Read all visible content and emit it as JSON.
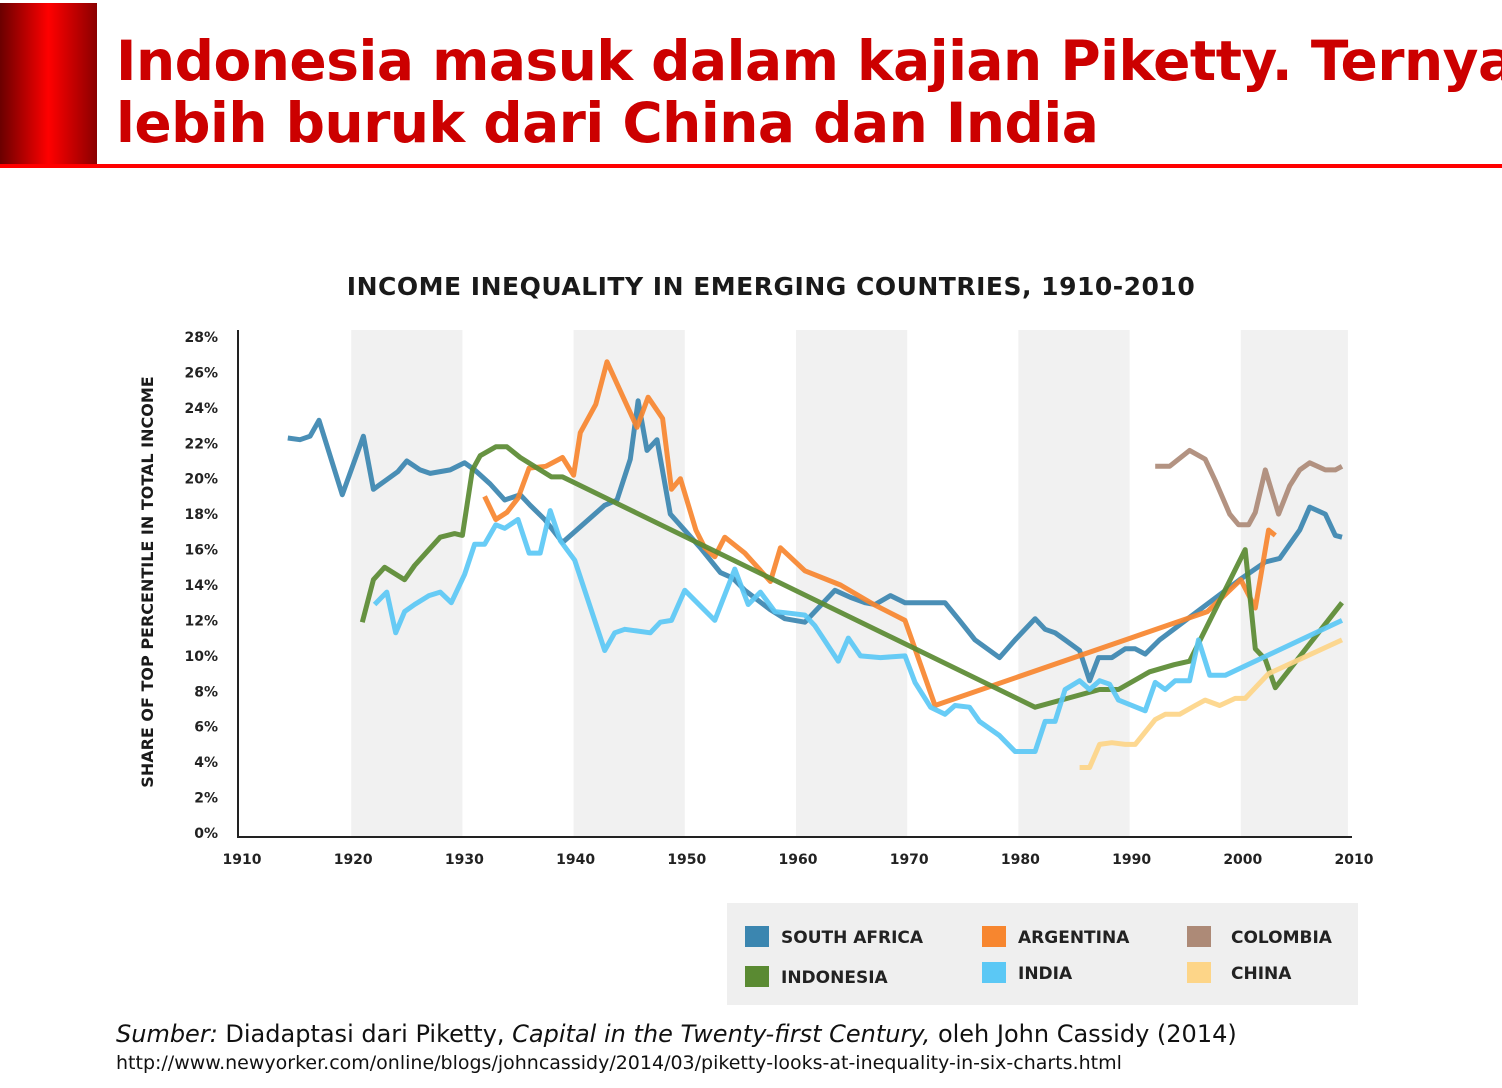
{
  "slide": {
    "title_line1": "Indonesia masuk dalam kajian Piketty. Ternyata",
    "title_line2": "lebih buruk dari China dan India",
    "accent_color": "#cc0000"
  },
  "source": {
    "label": "Sumber:",
    "text1": " Diadaptasi dari Piketty, ",
    "book": "Capital in the Twenty-first Century,",
    "text2": " oleh John Cassidy (2014)",
    "url": "http://www.newyorker.com/online/blogs/johncassidy/2014/03/piketty-looks-at-inequality-in-six-charts.html"
  },
  "chart_data": {
    "type": "line",
    "title": "INCOME INEQUALITY IN EMERGING COUNTRIES, 1910-2010",
    "xlabel": "",
    "ylabel": "SHARE OF TOP PERCENTILE IN TOTAL INCOME",
    "xlim": [
      1910,
      2010
    ],
    "ylim": [
      0,
      28
    ],
    "x_ticks": [
      "1910",
      "1920",
      "1930",
      "1940",
      "1950",
      "1960",
      "1970",
      "1980",
      "1990",
      "2000",
      "2010"
    ],
    "y_ticks": [
      "0%",
      "2%",
      "4%",
      "6%",
      "8%",
      "10%",
      "12%",
      "14%",
      "16%",
      "18%",
      "20%",
      "22%",
      "24%",
      "26%",
      "28%"
    ],
    "shaded_decades": [
      [
        1920,
        1930
      ],
      [
        1940,
        1950
      ],
      [
        1960,
        1970
      ],
      [
        1980,
        1990
      ],
      [
        2000,
        2009
      ]
    ],
    "legend_placement": "bottom-right",
    "series": [
      {
        "name": "SOUTH AFRICA",
        "color": "#3b86b0",
        "points": [
          [
            1914.3,
            22.3
          ],
          [
            1915.4,
            22.2
          ],
          [
            1916.3,
            22.4
          ],
          [
            1917.1,
            23.3
          ],
          [
            1919.2,
            19.1
          ],
          [
            1921.1,
            22.4
          ],
          [
            1922,
            19.4
          ],
          [
            1924.2,
            20.4
          ],
          [
            1925,
            21
          ],
          [
            1926.2,
            20.5
          ],
          [
            1927.1,
            20.3
          ],
          [
            1928.9,
            20.5
          ],
          [
            1930.2,
            20.9
          ],
          [
            1931.1,
            20.5
          ],
          [
            1932.5,
            19.7
          ],
          [
            1933.8,
            18.8
          ],
          [
            1935.2,
            19.1
          ],
          [
            1936.1,
            18.5
          ],
          [
            1937.4,
            17.7
          ],
          [
            1939,
            16.4
          ],
          [
            1942.8,
            18.5
          ],
          [
            1943.9,
            18.8
          ],
          [
            1945.1,
            21.1
          ],
          [
            1945.8,
            24.4
          ],
          [
            1946.6,
            21.6
          ],
          [
            1947.5,
            22.2
          ],
          [
            1948.7,
            18
          ],
          [
            1951.4,
            16.1
          ],
          [
            1953.2,
            14.7
          ],
          [
            1954.3,
            14.4
          ],
          [
            1955.4,
            13.7
          ],
          [
            1957.7,
            12.6
          ],
          [
            1959,
            12.1
          ],
          [
            1960.8,
            11.9
          ],
          [
            1963.5,
            13.7
          ],
          [
            1964.9,
            13.3
          ],
          [
            1966.2,
            13
          ],
          [
            1967.1,
            12.9
          ],
          [
            1968.5,
            13.4
          ],
          [
            1969.8,
            13
          ],
          [
            1973.4,
            13
          ],
          [
            1974.7,
            12
          ],
          [
            1976.1,
            10.9
          ],
          [
            1978.3,
            9.9
          ],
          [
            1979.7,
            10.9
          ],
          [
            1981.5,
            12.1
          ],
          [
            1982.4,
            11.5
          ],
          [
            1983.3,
            11.3
          ],
          [
            1984.2,
            10.9
          ],
          [
            1985.5,
            10.3
          ],
          [
            1986.4,
            8.6
          ],
          [
            1987.2,
            9.9
          ],
          [
            1988.4,
            9.9
          ],
          [
            1989.6,
            10.4
          ],
          [
            1990.5,
            10.4
          ],
          [
            1991.4,
            10.1
          ],
          [
            1992.7,
            10.9
          ],
          [
            1996.3,
            12.6
          ],
          [
            1999.9,
            14.3
          ],
          [
            2002.2,
            15.3
          ],
          [
            2003.5,
            15.5
          ],
          [
            2005.3,
            17.1
          ],
          [
            2006.2,
            18.4
          ],
          [
            2007.6,
            18
          ],
          [
            2008.5,
            16.8
          ],
          [
            2009.1,
            16.7
          ]
        ]
      },
      {
        "name": "ARGENTINA",
        "color": "#f7862f",
        "points": [
          [
            1932,
            19
          ],
          [
            1933,
            17.7
          ],
          [
            1934,
            18.1
          ],
          [
            1935,
            18.9
          ],
          [
            1936,
            20.6
          ],
          [
            1937.5,
            20.7
          ],
          [
            1939,
            21.2
          ],
          [
            1940,
            20.2
          ],
          [
            1940.6,
            22.6
          ],
          [
            1942,
            24.2
          ],
          [
            1943,
            26.6
          ],
          [
            1944.6,
            24.4
          ],
          [
            1945.7,
            22.9
          ],
          [
            1946.7,
            24.6
          ],
          [
            1948,
            23.4
          ],
          [
            1948.8,
            19.4
          ],
          [
            1949.6,
            20
          ],
          [
            1951,
            17.1
          ],
          [
            1951.8,
            16.1
          ],
          [
            1952.7,
            15.6
          ],
          [
            1953.6,
            16.7
          ],
          [
            1955.4,
            15.8
          ],
          [
            1957.7,
            14.2
          ],
          [
            1958.6,
            16.1
          ],
          [
            1960.8,
            14.8
          ],
          [
            1964,
            14
          ],
          [
            1967,
            12.9
          ],
          [
            1969.8,
            12
          ],
          [
            1972.5,
            7.2
          ],
          [
            1997,
            12.5
          ],
          [
            2000,
            14.3
          ],
          [
            2001.3,
            12.7
          ],
          [
            2002.5,
            17.1
          ],
          [
            2003.1,
            16.8
          ]
        ]
      },
      {
        "name": "COLOMBIA",
        "color": "#ad8a77",
        "points": [
          [
            1992.3,
            20.7
          ],
          [
            1993.6,
            20.7
          ],
          [
            1995.4,
            21.6
          ],
          [
            1996.8,
            21.1
          ],
          [
            1997.7,
            19.9
          ],
          [
            1999,
            18
          ],
          [
            1999.8,
            17.4
          ],
          [
            2000.7,
            17.4
          ],
          [
            2001.3,
            18.1
          ],
          [
            2002.2,
            20.5
          ],
          [
            2003.4,
            18
          ],
          [
            2004.4,
            19.6
          ],
          [
            2005.3,
            20.5
          ],
          [
            2006.2,
            20.9
          ],
          [
            2007.6,
            20.5
          ],
          [
            2008.5,
            20.5
          ],
          [
            2009.1,
            20.7
          ]
        ]
      },
      {
        "name": "INDONESIA",
        "color": "#5a8a32",
        "points": [
          [
            1921,
            11.9
          ],
          [
            1922,
            14.3
          ],
          [
            1923,
            15
          ],
          [
            1924.8,
            14.3
          ],
          [
            1925.7,
            15.1
          ],
          [
            1927,
            16
          ],
          [
            1928,
            16.7
          ],
          [
            1929.3,
            16.9
          ],
          [
            1930,
            16.8
          ],
          [
            1930.9,
            20.5
          ],
          [
            1931.6,
            21.3
          ],
          [
            1933,
            21.8
          ],
          [
            1934,
            21.8
          ],
          [
            1935.2,
            21.2
          ],
          [
            1938,
            20.1
          ],
          [
            1939,
            20.1
          ],
          [
            1981.5,
            7.1
          ],
          [
            1987.3,
            8.1
          ],
          [
            1989,
            8.1
          ],
          [
            1991.8,
            9.1
          ],
          [
            1994,
            9.5
          ],
          [
            1995.4,
            9.7
          ],
          [
            2000.4,
            16
          ],
          [
            2001.3,
            10.4
          ],
          [
            2002.2,
            9.8
          ],
          [
            2003.1,
            8.2
          ],
          [
            2009.1,
            13
          ]
        ]
      },
      {
        "name": "INDIA",
        "color": "#5bc8f5",
        "points": [
          [
            1922.1,
            12.9
          ],
          [
            1923.2,
            13.6
          ],
          [
            1924,
            11.3
          ],
          [
            1924.8,
            12.5
          ],
          [
            1925.7,
            12.9
          ],
          [
            1927,
            13.4
          ],
          [
            1928,
            13.6
          ],
          [
            1929,
            13
          ],
          [
            1930.2,
            14.6
          ],
          [
            1931.1,
            16.3
          ],
          [
            1932,
            16.3
          ],
          [
            1933,
            17.4
          ],
          [
            1933.8,
            17.2
          ],
          [
            1935,
            17.7
          ],
          [
            1936,
            15.8
          ],
          [
            1937,
            15.8
          ],
          [
            1937.9,
            18.2
          ],
          [
            1938.8,
            16.5
          ],
          [
            1940.1,
            15.4
          ],
          [
            1942.8,
            10.3
          ],
          [
            1943.7,
            11.3
          ],
          [
            1944.6,
            11.5
          ],
          [
            1946.9,
            11.3
          ],
          [
            1947.8,
            11.9
          ],
          [
            1948.8,
            12
          ],
          [
            1950,
            13.7
          ],
          [
            1952.7,
            12
          ],
          [
            1954.5,
            14.9
          ],
          [
            1955.7,
            12.9
          ],
          [
            1956.8,
            13.6
          ],
          [
            1958.1,
            12.5
          ],
          [
            1959.5,
            12.4
          ],
          [
            1960.8,
            12.3
          ],
          [
            1961.7,
            11.7
          ],
          [
            1963.8,
            9.7
          ],
          [
            1964.7,
            11
          ],
          [
            1965.8,
            10
          ],
          [
            1967.6,
            9.9
          ],
          [
            1969.8,
            10
          ],
          [
            1970.7,
            8.5
          ],
          [
            1972.1,
            7.1
          ],
          [
            1973.4,
            6.7
          ],
          [
            1974.3,
            7.2
          ],
          [
            1975.6,
            7.1
          ],
          [
            1976.5,
            6.3
          ],
          [
            1978.3,
            5.5
          ],
          [
            1979.7,
            4.6
          ],
          [
            1981.5,
            4.6
          ],
          [
            1982.4,
            6.3
          ],
          [
            1983.3,
            6.3
          ],
          [
            1984.2,
            8.1
          ],
          [
            1985.5,
            8.6
          ],
          [
            1986.4,
            8.1
          ],
          [
            1987.3,
            8.6
          ],
          [
            1988.2,
            8.4
          ],
          [
            1989,
            7.5
          ],
          [
            1991.4,
            6.9
          ],
          [
            1992.3,
            8.5
          ],
          [
            1993.2,
            8.1
          ],
          [
            1994.1,
            8.6
          ],
          [
            1995.4,
            8.6
          ],
          [
            1996.2,
            10.9
          ],
          [
            1997.2,
            8.9
          ],
          [
            1998.6,
            8.9
          ],
          [
            2009.1,
            12
          ]
        ]
      },
      {
        "name": "CHINA",
        "color": "#fdd588",
        "points": [
          [
            1985.5,
            3.7
          ],
          [
            1986.4,
            3.7
          ],
          [
            1987.3,
            5
          ],
          [
            1988.4,
            5.1
          ],
          [
            1989.6,
            5
          ],
          [
            1990.5,
            5
          ],
          [
            1992.3,
            6.4
          ],
          [
            1993.2,
            6.7
          ],
          [
            1994.5,
            6.7
          ],
          [
            1995.9,
            7.2
          ],
          [
            1996.8,
            7.5
          ],
          [
            1998.1,
            7.2
          ],
          [
            1999.5,
            7.6
          ],
          [
            2000.4,
            7.6
          ],
          [
            2001.3,
            8.2
          ],
          [
            2002.5,
            9
          ],
          [
            2009.1,
            10.9
          ]
        ]
      }
    ]
  }
}
